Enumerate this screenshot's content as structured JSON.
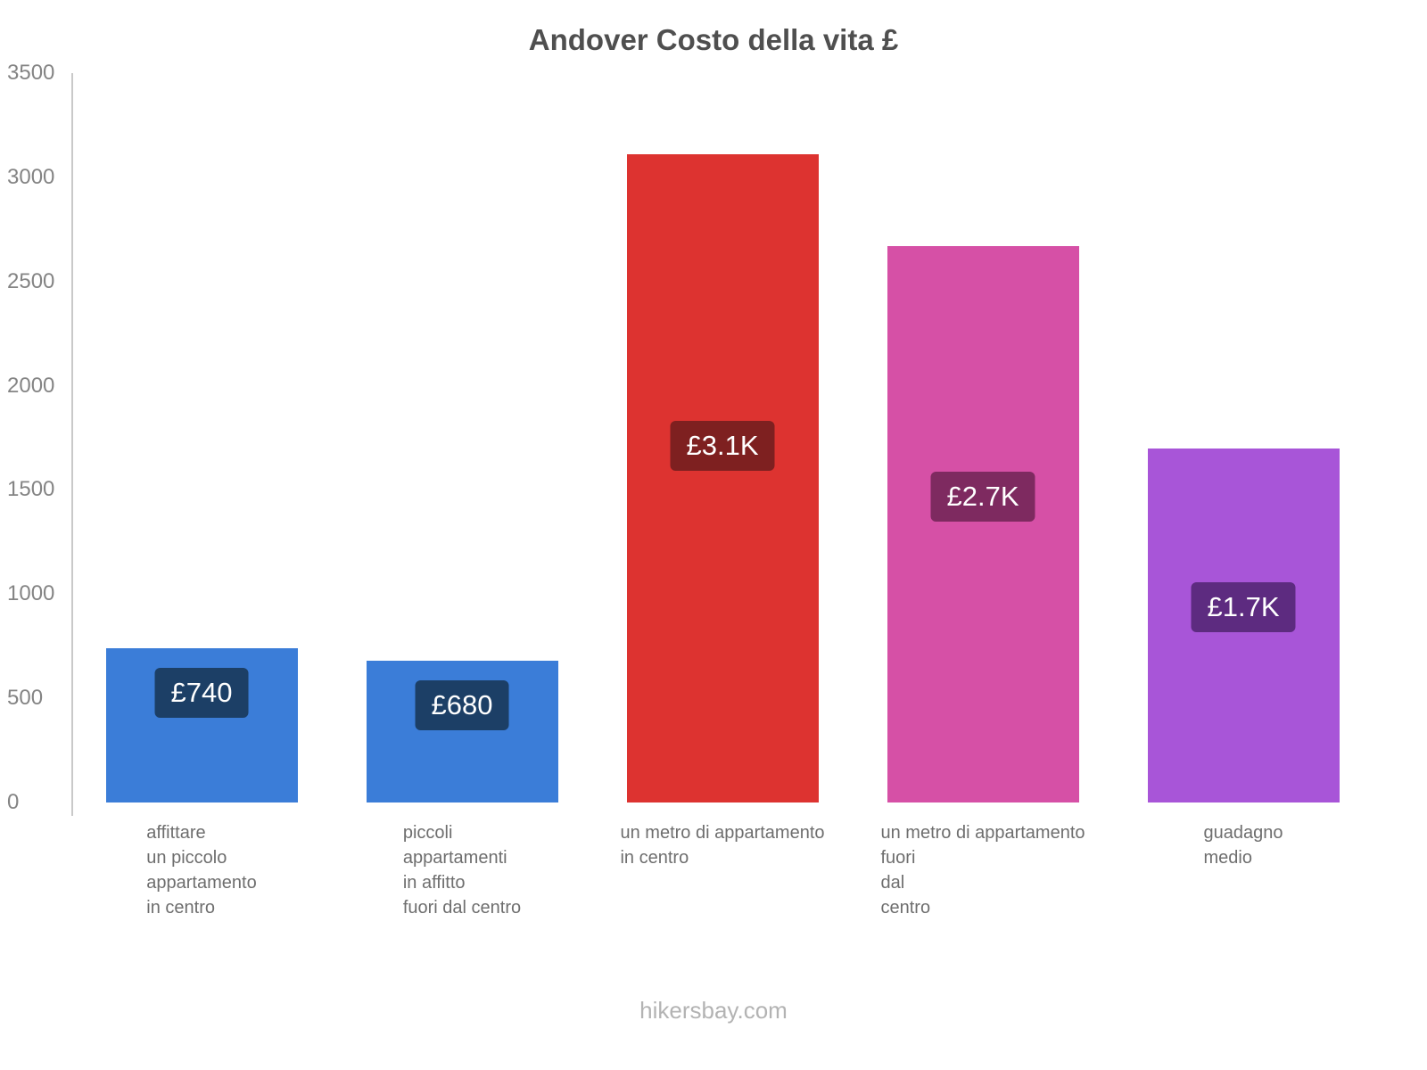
{
  "title": "Andover Costo della vita £",
  "footer": "hikersbay.com",
  "chart_data": {
    "type": "bar",
    "title": "Andover Costo della vita £",
    "currency": "£",
    "categories": [
      [
        "affittare",
        "un piccolo",
        "appartamento",
        "in centro"
      ],
      [
        "piccoli",
        "appartamenti",
        "in affitto",
        "fuori dal centro"
      ],
      [
        "un metro di appartamento",
        "in centro"
      ],
      [
        "un metro di appartamento",
        "fuori",
        "dal",
        "centro"
      ],
      [
        "guadagno",
        "medio"
      ]
    ],
    "values": [
      740,
      680,
      3110,
      2670,
      1700
    ],
    "value_labels": [
      "£740",
      "£680",
      "£3.1K",
      "£2.7K",
      "£1.7K"
    ],
    "bar_colors": [
      "#3b7dd8",
      "#3b7dd8",
      "#dd3330",
      "#d650a6",
      "#a855d8"
    ],
    "badge_colors": [
      "#1c3f66",
      "#1c3f66",
      "#7e2020",
      "#7e2a60",
      "#5d2b80"
    ],
    "ylim": [
      0,
      3500
    ],
    "yticks": [
      0,
      500,
      1000,
      1500,
      2000,
      2500,
      3000,
      3500
    ],
    "grid": false,
    "legend": false
  }
}
